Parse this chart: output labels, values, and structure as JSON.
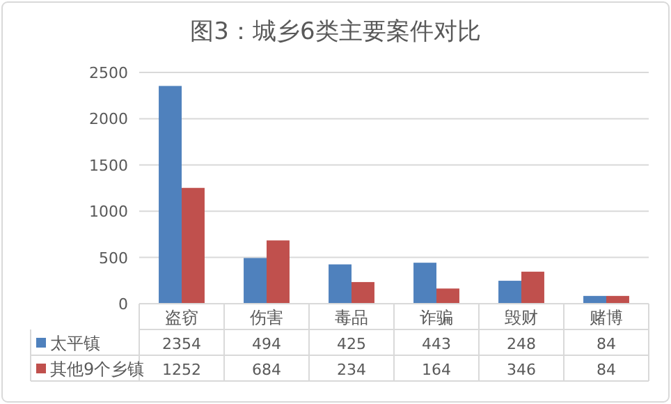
{
  "chart_data": {
    "type": "bar",
    "title": "图3：城乡6类主要案件对比",
    "categories": [
      "盗窃",
      "伤害",
      "毒品",
      "诈骗",
      "毁财",
      "赌博"
    ],
    "series": [
      {
        "name": "太平镇",
        "color": "#4f81bd",
        "values": [
          2354,
          494,
          425,
          443,
          248,
          84
        ]
      },
      {
        "name": "其他9个乡镇",
        "color": "#c0504d",
        "values": [
          1252,
          684,
          234,
          164,
          346,
          84
        ]
      }
    ],
    "ylim": [
      0,
      2500
    ],
    "yticks": [
      0,
      500,
      1000,
      1500,
      2000,
      2500
    ],
    "grid": "y",
    "legend": "bottom",
    "data_labels": true
  }
}
